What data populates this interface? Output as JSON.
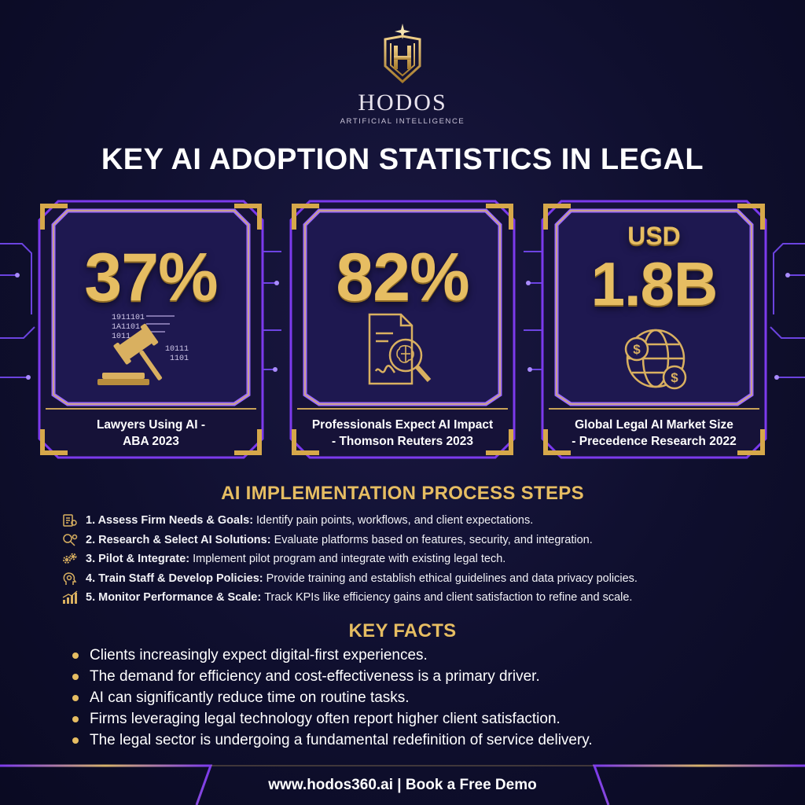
{
  "brand": {
    "name": "HODOS",
    "tagline": "ARTIFICIAL INTELLIGENCE",
    "logo_icon": "h-shield-star-icon"
  },
  "title": "KEY AI ADOPTION STATISTICS IN LEGAL",
  "stats": [
    {
      "value": "37%",
      "label_line1": "Lawyers Using AI -",
      "label_line2": "ABA 2023",
      "icon": "gavel-binary-icon"
    },
    {
      "value": "82%",
      "label_line1": "Professionals Expect AI Impact",
      "label_line2": "- Thomson Reuters 2023",
      "icon": "document-brain-magnifier-icon"
    },
    {
      "prefix": "USD",
      "value": "1.8B",
      "label_line1": "Global Legal AI Market Size",
      "label_line2": "- Precedence Research 2022",
      "icon": "globe-dollar-icon"
    }
  ],
  "steps_title": "AI IMPLEMENTATION PROCESS STEPS",
  "steps": [
    {
      "title": "1. Assess Firm Needs & Goals:",
      "text": "Identify pain points, workflows, and client expectations.",
      "icon": "clipboard-icon"
    },
    {
      "title": "2. Research & Select AI Solutions:",
      "text": "Evaluate platforms based on features, security, and integration.",
      "icon": "search-gear-icon"
    },
    {
      "title": "3. Pilot & Integrate:",
      "text": "Implement pilot program and integrate with existing legal tech.",
      "icon": "gears-icon"
    },
    {
      "title": "4. Train Staff & Develop Policies:",
      "text": "Provide training and establish ethical guidelines and data privacy policies.",
      "icon": "head-gear-icon"
    },
    {
      "title": "5. Monitor Performance & Scale:",
      "text": "Track KPIs like efficiency gains and client satisfaction to refine and scale.",
      "icon": "chart-growth-icon"
    }
  ],
  "facts_title": "KEY FACTS",
  "facts": [
    "Clients increasingly expect digital-first experiences.",
    "The demand for efficiency and cost-effectiveness is a primary driver.",
    "AI can significantly reduce time on routine tasks.",
    "Firms leveraging legal technology often report higher client satisfaction.",
    "The legal sector is undergoing a fundamental redefinition of service delivery."
  ],
  "footer": {
    "text": "www.hodos360.ai | Book a Free Demo"
  },
  "colors": {
    "background": "#0f0f2e",
    "gold": "#e6bd62",
    "purple": "#8b5cf6",
    "text": "#ffffff"
  }
}
